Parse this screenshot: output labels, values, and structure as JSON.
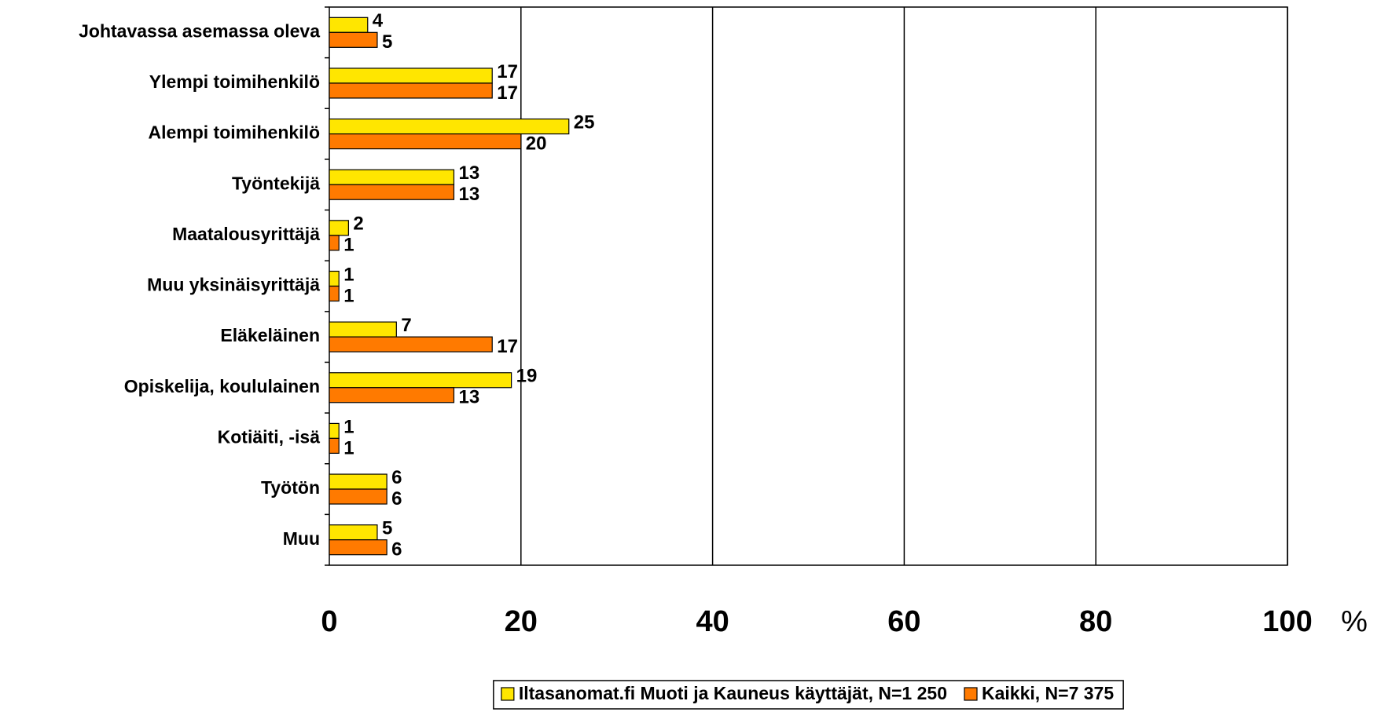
{
  "chart_data": {
    "type": "hbar",
    "categories": [
      "Johtavassa asemassa oleva",
      "Ylempi toimihenkilö",
      "Alempi toimihenkilö",
      "Työntekijä",
      "Maatalousyrittäjä",
      "Muu yksinäisyrittäjä",
      "Eläkeläinen",
      "Opiskelija, koululainen",
      "Kotiäiti, -isä",
      "Työtön",
      "Muu"
    ],
    "series": [
      {
        "name": "Iltasanomat.fi Muoti ja Kauneus käyttäjät, N=1 250",
        "color": "#ffe600",
        "values": [
          4,
          17,
          25,
          13,
          2,
          1,
          7,
          19,
          1,
          6,
          5
        ]
      },
      {
        "name": "Kaikki, N=7 375",
        "color": "#ff7a00",
        "values": [
          5,
          17,
          20,
          13,
          1,
          1,
          17,
          13,
          1,
          6,
          6
        ]
      }
    ],
    "xlabel": "%",
    "xlim": [
      0,
      100
    ],
    "xticks": [
      0,
      20,
      40,
      60,
      80,
      100
    ],
    "grid": true,
    "legend": "bottom"
  }
}
